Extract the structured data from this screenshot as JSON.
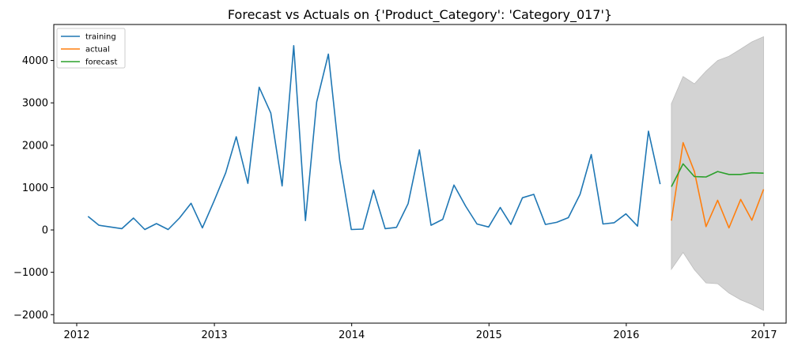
{
  "chart_data": {
    "type": "line",
    "title": "Forecast vs Actuals on {'Product_Category': 'Category_017'}",
    "xlabel": "",
    "ylabel": "",
    "xlim": [
      "2011-11-01",
      "2017-03-01"
    ],
    "ylim": [
      -2200,
      4850
    ],
    "x_ticks": [
      "2012",
      "2013",
      "2014",
      "2015",
      "2016",
      "2017"
    ],
    "y_ticks": [
      4000,
      3000,
      2000,
      1000,
      0,
      -1000,
      -2000
    ],
    "grid": false,
    "legend_position": "top-left",
    "series": [
      {
        "name": "training",
        "color": "#1f77b4",
        "x": [
          "2012-01-31",
          "2012-02-29",
          "2012-03-31",
          "2012-04-30",
          "2012-05-31",
          "2012-06-30",
          "2012-07-31",
          "2012-08-31",
          "2012-09-30",
          "2012-10-31",
          "2012-11-30",
          "2012-12-31",
          "2013-01-31",
          "2013-02-28",
          "2013-03-31",
          "2013-04-30",
          "2013-05-31",
          "2013-06-30",
          "2013-07-31",
          "2013-08-31",
          "2013-09-30",
          "2013-10-31",
          "2013-11-30",
          "2013-12-31",
          "2014-01-31",
          "2014-02-28",
          "2014-03-31",
          "2014-04-30",
          "2014-05-31",
          "2014-06-30",
          "2014-07-31",
          "2014-08-31",
          "2014-09-30",
          "2014-10-31",
          "2014-11-30",
          "2014-12-31",
          "2015-01-31",
          "2015-02-28",
          "2015-03-31",
          "2015-04-30",
          "2015-05-31",
          "2015-06-30",
          "2015-07-31",
          "2015-08-31",
          "2015-09-30",
          "2015-10-31",
          "2015-11-30",
          "2015-12-31",
          "2016-01-31",
          "2016-02-29",
          "2016-03-31"
        ],
        "values": [
          320,
          110,
          70,
          30,
          280,
          10,
          150,
          10,
          280,
          630,
          50,
          680,
          1350,
          2200,
          1100,
          3370,
          2760,
          1040,
          4350,
          220,
          3020,
          4150,
          1650,
          10,
          20,
          940,
          30,
          60,
          620,
          1890,
          110,
          250,
          1060,
          560,
          140,
          70,
          530,
          130,
          760,
          840,
          130,
          180,
          290,
          840,
          1780,
          140,
          170,
          380,
          90,
          2330,
          1080
        ]
      },
      {
        "name": "actual",
        "color": "#ff7f0e",
        "x": [
          "2016-04-30",
          "2016-05-31",
          "2016-06-30",
          "2016-07-31",
          "2016-08-31",
          "2016-09-30",
          "2016-10-31",
          "2016-11-30",
          "2016-12-31",
          "2017-01-31"
        ],
        "values": [
          220,
          2060,
          1380,
          80,
          700,
          50,
          720,
          230,
          960,
          null
        ]
      },
      {
        "name": "forecast",
        "color": "#2ca02c",
        "x": [
          "2016-04-30",
          "2016-05-31",
          "2016-06-30",
          "2016-07-31",
          "2016-08-31",
          "2016-09-30",
          "2016-10-31",
          "2016-11-30",
          "2016-12-31"
        ],
        "values": [
          1020,
          1560,
          1260,
          1250,
          1380,
          1310,
          1310,
          1350,
          1340
        ]
      }
    ],
    "confidence_band": {
      "color": "#d3d3d3",
      "x": [
        "2016-04-30",
        "2016-05-31",
        "2016-06-30",
        "2016-07-31",
        "2016-08-31",
        "2016-09-30",
        "2016-10-31",
        "2016-11-30",
        "2016-12-31"
      ],
      "upper": [
        2980,
        3620,
        3450,
        3750,
        4000,
        4100,
        4270,
        4440,
        4560
      ],
      "lower": [
        -930,
        -530,
        -940,
        -1250,
        -1270,
        -1490,
        -1650,
        -1760,
        -1900
      ]
    }
  }
}
